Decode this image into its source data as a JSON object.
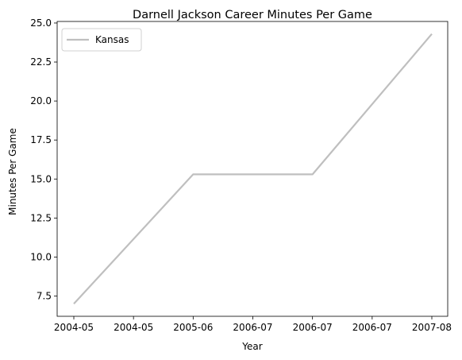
{
  "chart_data": {
    "type": "line",
    "title": "Darnell Jackson Career Minutes Per Game",
    "xlabel": "Year",
    "ylabel": "Minutes Per Game",
    "x_ticks": [
      "2004-05",
      "2004-05",
      "2005-06",
      "2006-07",
      "2006-07",
      "2006-07",
      "2007-08"
    ],
    "y_ticks": [
      "7.5",
      "10.0",
      "12.5",
      "15.0",
      "17.5",
      "20.0",
      "22.5",
      "25.0"
    ],
    "ylim": [
      6.2,
      25.1
    ],
    "grid": false,
    "legend_position": "top-left",
    "series": [
      {
        "name": "Kansas",
        "color": "#bfbfbf",
        "x": [
          "2004-05",
          "2005-06",
          "2006-07",
          "2007-08"
        ],
        "values": [
          7.0,
          15.3,
          15.3,
          24.3
        ]
      }
    ]
  }
}
